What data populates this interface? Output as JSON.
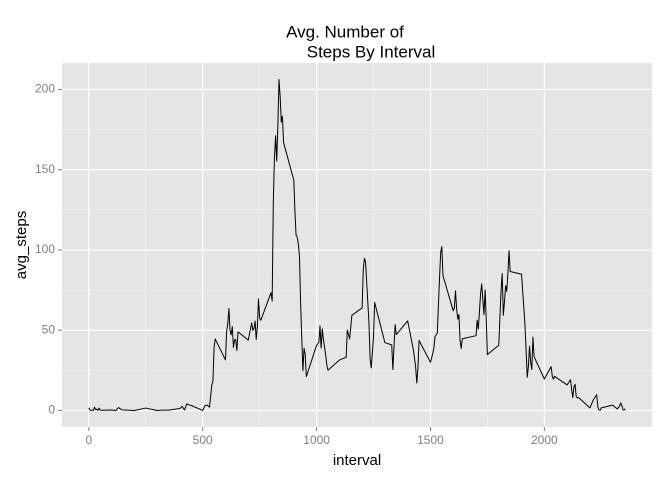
{
  "chart_data": {
    "type": "line",
    "title": [
      "Avg. Number of",
      "Steps By Interval"
    ],
    "x_label": "interval",
    "y_label": "avg_steps",
    "x": [
      0,
      5,
      10,
      15,
      20,
      25,
      30,
      35,
      40,
      45,
      50,
      55,
      100,
      120,
      125,
      130,
      145,
      200,
      250,
      300,
      320,
      350,
      400,
      410,
      420,
      430,
      440,
      450,
      500,
      505,
      510,
      520,
      530,
      540,
      545,
      550,
      555,
      600,
      605,
      610,
      615,
      620,
      625,
      630,
      635,
      640,
      645,
      650,
      655,
      700,
      715,
      720,
      725,
      730,
      735,
      740,
      745,
      750,
      755,
      800,
      805,
      810,
      815,
      820,
      825,
      830,
      835,
      840,
      845,
      850,
      855,
      900,
      905,
      910,
      915,
      920,
      925,
      930,
      935,
      940,
      945,
      950,
      955,
      1000,
      1010,
      1015,
      1020,
      1025,
      1030,
      1040,
      1045,
      1050,
      1100,
      1130,
      1135,
      1145,
      1155,
      1200,
      1205,
      1210,
      1215,
      1230,
      1235,
      1240,
      1250,
      1255,
      1300,
      1330,
      1335,
      1340,
      1345,
      1350,
      1400,
      1425,
      1435,
      1440,
      1445,
      1450,
      1500,
      1510,
      1515,
      1520,
      1530,
      1540,
      1545,
      1550,
      1555,
      1600,
      1605,
      1610,
      1615,
      1620,
      1625,
      1630,
      1635,
      1640,
      1700,
      1705,
      1710,
      1715,
      1720,
      1725,
      1730,
      1735,
      1740,
      1745,
      1750,
      1800,
      1805,
      1810,
      1815,
      1820,
      1825,
      1830,
      1835,
      1840,
      1845,
      1850,
      1900,
      1915,
      1925,
      1930,
      1935,
      1940,
      1945,
      1950,
      1955,
      2000,
      2030,
      2035,
      2040,
      2045,
      2100,
      2115,
      2120,
      2125,
      2130,
      2135,
      2140,
      2145,
      2150,
      2200,
      2215,
      2225,
      2230,
      2235,
      2240,
      2245,
      2250,
      2300,
      2320,
      2330,
      2335,
      2340,
      2345,
      2350,
      2355
    ],
    "series": [
      {
        "name": "avg_steps",
        "color": "#000000",
        "values": [
          1.7,
          0.3,
          0.1,
          0.2,
          0.1,
          2.1,
          0.5,
          0.9,
          0,
          1.5,
          0.3,
          0.1,
          0.3,
          0,
          1.1,
          1.8,
          0.4,
          0,
          1.5,
          0,
          0.2,
          0.2,
          1.2,
          2.6,
          0.3,
          4.1,
          3.5,
          3.1,
          0,
          1.6,
          3.0,
          3.3,
          2.1,
          16,
          18.3,
          39.5,
          44.5,
          31.5,
          49.3,
          53.8,
          63.5,
          50,
          47.1,
          52.2,
          39.3,
          44.0,
          44.2,
          37.4,
          49.0,
          43.8,
          54.6,
          49.9,
          50.9,
          55.7,
          44.3,
          52.3,
          69.5,
          57.8,
          56.2,
          73.4,
          68.2,
          129.4,
          157.5,
          171.2,
          155.4,
          177.3,
          206.2,
          195.9,
          179.6,
          183.4,
          167.0,
          143.5,
          124.0,
          109.1,
          108.1,
          103.7,
          95.9,
          66.2,
          45.2,
          24.8,
          38.8,
          35.0,
          21.1,
          40.6,
          42.4,
          52.7,
          38.9,
          50.8,
          44.3,
          34.5,
          28.3,
          25.1,
          31.4,
          33.2,
          50.1,
          44.6,
          59.3,
          63.9,
          87.6,
          94.8,
          92.8,
          54.5,
          32.4,
          26.5,
          45.9,
          67.3,
          42.3,
          40.8,
          25.5,
          39.9,
          53.5,
          47.3,
          55.8,
          37.7,
          27.1,
          17.1,
          26.1,
          43.6,
          30.0,
          35.5,
          38.8,
          46.0,
          48.1,
          82.9,
          98.7,
          102.1,
          84.0,
          62.1,
          64.1,
          74.5,
          63.2,
          56.9,
          59.8,
          43.9,
          38.6,
          44.7,
          46.6,
          56.3,
          50.7,
          61.2,
          72.7,
          78.9,
          68.9,
          59.7,
          75.1,
          56.5,
          34.8,
          40.7,
          58.0,
          74.7,
          85.3,
          59.3,
          67.8,
          77.7,
          74.2,
          85.3,
          99.5,
          86.6,
          84.9,
          53.4,
          20.7,
          27.4,
          40.0,
          30.2,
          25.5,
          45.7,
          33.5,
          19.6,
          27.3,
          21.3,
          19.5,
          21.3,
          15.9,
          19.2,
          12.9,
          8.0,
          14.7,
          16.3,
          8.7,
          7.8,
          8.1,
          1.6,
          6.6,
          8.7,
          9.8,
          2.2,
          0.3,
          0.1,
          1.6,
          3.3,
          1.0,
          2.6,
          4.7,
          3.3,
          0.6,
          0.2,
          1.1
        ]
      }
    ],
    "xlim": [
      -117.75,
      2472.75
    ],
    "xticks": [
      0,
      500,
      1000,
      1500,
      2000
    ],
    "ylim": [
      -10.3,
      216.5
    ],
    "yticks": [
      0,
      50,
      100,
      150,
      200
    ],
    "grid": true
  }
}
